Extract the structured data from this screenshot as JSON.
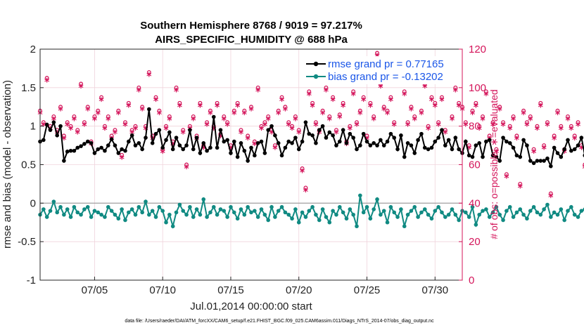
{
  "chart_data": {
    "type": "line",
    "title_line1": "Southern Hemisphere 8768 / 9019 = 97.217%",
    "title_line2": "AIRS_SPECIFIC_HUMIDITY @ 688 hPa",
    "xlabel": "Jul.01,2014 00:00:00 start",
    "ylabel_left": "rmse and bias (model - observation)",
    "ylabel_right": "# of obs: o=possible; ∗=evaluated",
    "footnote": "data file: /Users/raeder/DAI/ATM_forcXX/CAM6_setup/f.e21.FHIST_BGC.f09_025.CAM6assim.011/Diags_NTrS_2014-07/obs_diag_output.nc",
    "xlim": [
      1,
      32
    ],
    "ylim_left": [
      -1,
      2
    ],
    "ylim_right": [
      0,
      120
    ],
    "x_ticks": [
      5,
      10,
      15,
      20,
      25,
      30
    ],
    "x_tick_labels": [
      "07/05",
      "07/10",
      "07/15",
      "07/20",
      "07/25",
      "07/30"
    ],
    "y_ticks_left": [
      -1,
      -0.5,
      0,
      0.5,
      1,
      1.5,
      2
    ],
    "y_tick_labels_left": [
      "-1",
      "-0.5",
      "0",
      "0.5",
      "1",
      "1.5",
      "2"
    ],
    "y_ticks_right": [
      0,
      20,
      40,
      60,
      80,
      100,
      120
    ],
    "y_tick_labels_right": [
      "0",
      "20",
      "40",
      "60",
      "80",
      "100",
      "120"
    ],
    "x_start": 1,
    "x_step": 0.25,
    "series": [
      {
        "name": "rmse grand pr = 0.77165",
        "color": "#000000",
        "values": [
          0.8,
          0.82,
          1.02,
          0.95,
          1.05,
          0.88,
          1.0,
          0.55,
          0.67,
          0.68,
          0.68,
          0.72,
          0.74,
          0.77,
          0.8,
          0.78,
          0.65,
          0.7,
          0.72,
          0.68,
          0.75,
          0.83,
          0.75,
          0.65,
          0.7,
          0.68,
          0.8,
          0.88,
          0.75,
          0.78,
          0.7,
          0.85,
          1.22,
          0.78,
          0.9,
          0.95,
          0.72,
          0.82,
          0.92,
          0.7,
          0.85,
          0.75,
          0.7,
          0.75,
          0.95,
          0.7,
          0.85,
          0.65,
          0.78,
          0.68,
          0.72,
          1.12,
          0.72,
          0.95,
          0.8,
          0.82,
          0.65,
          0.8,
          0.6,
          0.78,
          0.68,
          0.55,
          0.72,
          0.62,
          0.78,
          0.8,
          0.65,
          0.95,
          1.0,
          0.88,
          0.78,
          0.62,
          0.72,
          0.8,
          0.78,
          0.85,
          0.7,
          0.8,
          1.05,
          0.9,
          0.88,
          0.78,
          0.95,
          1.0,
          0.85,
          0.92,
          0.88,
          0.75,
          0.8,
          0.95,
          0.78,
          0.9,
          0.85,
          0.7,
          0.75,
          0.9,
          0.8,
          0.75,
          0.78,
          0.75,
          0.82,
          0.75,
          0.8,
          0.9,
          0.85,
          0.7,
          0.88,
          0.6,
          0.78,
          0.75,
          0.65,
          0.82,
          0.9,
          0.72,
          0.7,
          0.72,
          0.8,
          0.85,
          0.95,
          0.75,
          0.82,
          0.7,
          0.85,
          0.7,
          0.65,
          0.8,
          0.62,
          0.6,
          0.75,
          0.78,
          0.6,
          0.8,
          0.82,
          0.62,
          0.6,
          0.55,
          0.85,
          0.8,
          0.78,
          0.72,
          0.62,
          0.6,
          0.82,
          0.75,
          0.55,
          0.52,
          0.55,
          0.55,
          0.55,
          0.58,
          0.48,
          0.72,
          0.65,
          0.6,
          0.7,
          0.82,
          0.68,
          0.7,
          0.75,
          0.85,
          0.62,
          0.75,
          0.88,
          0.65,
          0.78,
          0.62,
          0.72,
          0.9,
          0.72,
          0.78,
          0.85,
          0.72,
          0.75,
          0.75,
          0.7,
          0.65,
          0.62,
          0.7,
          0.72,
          0.85,
          0.65,
          0.95,
          0.7,
          0.78,
          0.8,
          0.75,
          0.78
        ]
      },
      {
        "name": "bias grand pr = -0.13202",
        "color": "#108a82",
        "values": [
          -0.15,
          -0.08,
          -0.18,
          -0.1,
          0.02,
          -0.12,
          -0.05,
          -0.15,
          -0.08,
          -0.18,
          -0.05,
          -0.12,
          -0.15,
          -0.08,
          -0.05,
          -0.18,
          -0.1,
          -0.12,
          -0.15,
          -0.18,
          -0.05,
          -0.1,
          -0.15,
          -0.2,
          -0.08,
          -0.22,
          -0.12,
          -0.08,
          -0.15,
          -0.05,
          -0.12,
          0.02,
          -0.15,
          -0.1,
          -0.18,
          -0.05,
          -0.1,
          -0.25,
          -0.15,
          -0.3,
          -0.12,
          -0.02,
          -0.1,
          -0.15,
          -0.05,
          -0.18,
          -0.08,
          -0.15,
          0.05,
          -0.18,
          -0.12,
          -0.05,
          -0.15,
          -0.08,
          -0.1,
          -0.18,
          -0.05,
          -0.12,
          -0.2,
          -0.08,
          -0.15,
          -0.05,
          -0.12,
          -0.1,
          -0.18,
          -0.08,
          -0.15,
          -0.22,
          -0.05,
          -0.18,
          -0.1,
          -0.05,
          -0.12,
          -0.15,
          -0.2,
          -0.08,
          -0.25,
          -0.12,
          -0.18,
          -0.1,
          -0.05,
          -0.15,
          -0.22,
          -0.08,
          -0.18,
          -0.25,
          -0.1,
          -0.15,
          -0.05,
          -0.12,
          -0.2,
          -0.08,
          -0.15,
          -0.3,
          0.1,
          -0.12,
          -0.05,
          -0.2,
          -0.08,
          0.05,
          -0.15,
          -0.1,
          -0.25,
          -0.05,
          -0.12,
          -0.18,
          -0.08,
          -0.3,
          -0.15,
          -0.1,
          -0.05,
          -0.18,
          -0.12,
          -0.08,
          -0.15,
          -0.2,
          -0.1,
          -0.05,
          -0.12,
          -0.18,
          -0.15,
          -0.08,
          -0.15,
          -0.22,
          -0.1,
          -0.12,
          -0.18,
          -0.05,
          -0.28,
          -0.15,
          -0.1,
          -0.08,
          -0.18,
          -0.12,
          -0.05,
          -0.15,
          -0.22,
          -0.1,
          -0.05,
          -0.18,
          -0.12,
          -0.08,
          -0.15,
          -0.2,
          -0.1,
          -0.05,
          -0.12,
          -0.15,
          -0.08,
          -0.02,
          -0.18,
          -0.12,
          -0.15,
          -0.08,
          -0.22,
          -0.1,
          -0.05,
          -0.15,
          -0.18,
          -0.1,
          -0.08,
          -0.25,
          -0.12,
          -0.15,
          -0.05,
          -0.1,
          -0.18,
          -0.08,
          -0.12,
          -0.15,
          -0.22,
          -0.1,
          -0.05,
          -0.12,
          -0.18,
          -0.25,
          -0.15,
          -0.1,
          -0.18,
          -0.3,
          -0.12,
          -0.15,
          -0.08,
          -0.05,
          -0.18,
          -0.1,
          0.0,
          -0.05,
          -0.15
        ]
      }
    ],
    "obs_possible": {
      "name": "# obs possible",
      "marker": "o",
      "color": "#d4145a",
      "values": [
        88,
        82,
        105,
        80,
        85,
        78,
        90,
        75,
        82,
        80,
        85,
        78,
        102,
        82,
        90,
        72,
        85,
        88,
        95,
        80,
        85,
        75,
        78,
        88,
        65,
        82,
        92,
        78,
        80,
        100,
        90,
        80,
        108,
        75,
        95,
        88,
        68,
        80,
        85,
        72,
        100,
        92,
        78,
        60,
        80,
        85,
        75,
        92,
        70,
        82,
        88,
        80,
        92,
        76,
        85,
        82,
        70,
        88,
        92,
        78,
        88,
        75,
        90,
        72,
        100,
        80,
        82,
        85,
        78,
        70,
        88,
        95,
        90,
        82,
        80,
        85,
        78,
        58,
        48,
        98,
        92,
        82,
        78,
        88,
        100,
        85,
        95,
        78,
        86,
        92,
        72,
        80,
        98,
        82,
        88,
        95,
        75,
        92,
        85,
        118,
        102,
        90,
        88,
        95,
        82,
        110,
        108,
        98,
        82,
        90,
        85,
        108,
        88,
        102,
        80,
        95,
        92,
        82,
        95,
        78,
        105,
        85,
        100,
        92,
        90,
        82,
        70,
        88,
        92,
        80,
        85,
        98,
        75,
        82,
        68,
        90,
        82,
        55,
        80,
        85,
        75,
        50,
        88,
        82,
        85,
        68,
        80,
        92,
        70,
        82,
        45,
        75,
        88,
        80,
        68,
        85,
        80,
        75,
        82,
        70,
        60,
        78,
        80,
        85,
        68,
        82,
        78,
        75,
        85,
        78,
        70,
        82,
        88,
        80,
        72,
        75,
        80,
        82,
        78,
        85,
        70,
        88,
        80,
        65,
        82,
        78,
        80
      ]
    },
    "obs_evaluated": {
      "name": "# obs evaluated",
      "marker": "*",
      "color": "#d4145a",
      "values": [
        86,
        80,
        103,
        78,
        83,
        76,
        88,
        73,
        80,
        78,
        83,
        76,
        100,
        80,
        88,
        70,
        83,
        86,
        93,
        78,
        83,
        73,
        76,
        86,
        63,
        80,
        90,
        76,
        78,
        98,
        88,
        78,
        106,
        73,
        93,
        86,
        66,
        78,
        83,
        70,
        98,
        90,
        76,
        58,
        78,
        83,
        73,
        90,
        68,
        80,
        86,
        78,
        90,
        74,
        83,
        80,
        68,
        86,
        90,
        76,
        86,
        73,
        88,
        70,
        98,
        78,
        80,
        83,
        76,
        68,
        86,
        93,
        88,
        80,
        78,
        83,
        76,
        56,
        46,
        96,
        90,
        80,
        76,
        86,
        98,
        83,
        93,
        76,
        84,
        90,
        70,
        78,
        96,
        80,
        86,
        93,
        73,
        90,
        83,
        116,
        100,
        88,
        86,
        93,
        80,
        108,
        106,
        96,
        80,
        88,
        83,
        106,
        86,
        100,
        78,
        93,
        90,
        80,
        93,
        76,
        103,
        83,
        98,
        90,
        88,
        80,
        68,
        86,
        90,
        78,
        83,
        96,
        73,
        80,
        66,
        88,
        80,
        53,
        78,
        83,
        73,
        48,
        86,
        80,
        83,
        66,
        78,
        90,
        68,
        80,
        43,
        73,
        86,
        78,
        66,
        83,
        78,
        73,
        80,
        68,
        58,
        76,
        78,
        83,
        66,
        80,
        76,
        73,
        83,
        76,
        68,
        80,
        86,
        78,
        70,
        73,
        78,
        80,
        76,
        83,
        68,
        86,
        78,
        63,
        80,
        76,
        78
      ]
    },
    "legend_position": "top-right"
  }
}
